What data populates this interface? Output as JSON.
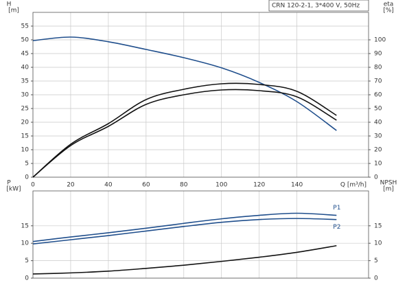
{
  "chart_data": [
    {
      "type": "line",
      "header": "CRN 120-2-1, 3*400 V, 50Hz",
      "ylabel": "H",
      "yunit": "[m]",
      "y2label": "eta",
      "y2unit": "[%]",
      "xlabel": "Q [m³/h]",
      "xlim": [
        0,
        178
      ],
      "xticks": [
        0,
        20,
        40,
        60,
        80,
        100,
        120,
        140
      ],
      "ylim": [
        0,
        60
      ],
      "yticks": [
        0,
        5,
        10,
        15,
        20,
        25,
        30,
        35,
        40,
        45,
        50,
        55
      ],
      "y2lim": [
        0,
        120
      ],
      "y2ticks": [
        0,
        10,
        20,
        30,
        40,
        50,
        60,
        70,
        80,
        90,
        100
      ],
      "grid": true,
      "x": [
        0,
        20,
        40,
        60,
        80,
        100,
        120,
        140,
        161
      ],
      "series": [
        {
          "color": "#1f4e8c",
          "axis": "y",
          "values": [
            49.7,
            51,
            49.3,
            46.5,
            43.5,
            39.8,
            34.5,
            27.5,
            17
          ]
        },
        {
          "color": "#111111",
          "axis": "y2",
          "values": [
            0,
            24,
            39,
            56.5,
            64,
            68,
            67.5,
            62.5,
            45
          ]
        },
        {
          "color": "#111111",
          "axis": "y2",
          "values": [
            0,
            23,
            37,
            53,
            60,
            63.5,
            63,
            58.5,
            41.5
          ]
        }
      ]
    },
    {
      "type": "line",
      "ylabel": "P",
      "yunit": "[kW]",
      "y2label": "NPSH",
      "y2unit": "[m]",
      "xlim": [
        0,
        178
      ],
      "xticks": [
        0,
        20,
        40,
        60,
        80,
        100,
        120,
        140
      ],
      "ylim": [
        0,
        25
      ],
      "yticks": [
        0,
        5,
        10,
        15
      ],
      "y2lim": [
        0,
        25
      ],
      "y2ticks": [
        0,
        5,
        10,
        15
      ],
      "grid": true,
      "x": [
        0,
        20,
        40,
        60,
        80,
        100,
        120,
        140,
        161
      ],
      "series": [
        {
          "name": "P1",
          "color": "#1f4e8c",
          "axis": "y",
          "values": [
            10.5,
            11.8,
            13,
            14.3,
            15.7,
            17,
            18,
            18.6,
            18
          ]
        },
        {
          "name": "P2",
          "color": "#1f4e8c",
          "axis": "y",
          "values": [
            9.8,
            11,
            12.2,
            13.5,
            14.8,
            16,
            16.8,
            17.1,
            16.8
          ]
        },
        {
          "color": "#111111",
          "axis": "y2",
          "values": [
            1.2,
            1.5,
            2,
            2.8,
            3.7,
            4.8,
            6,
            7.4,
            9.3
          ]
        }
      ]
    }
  ]
}
